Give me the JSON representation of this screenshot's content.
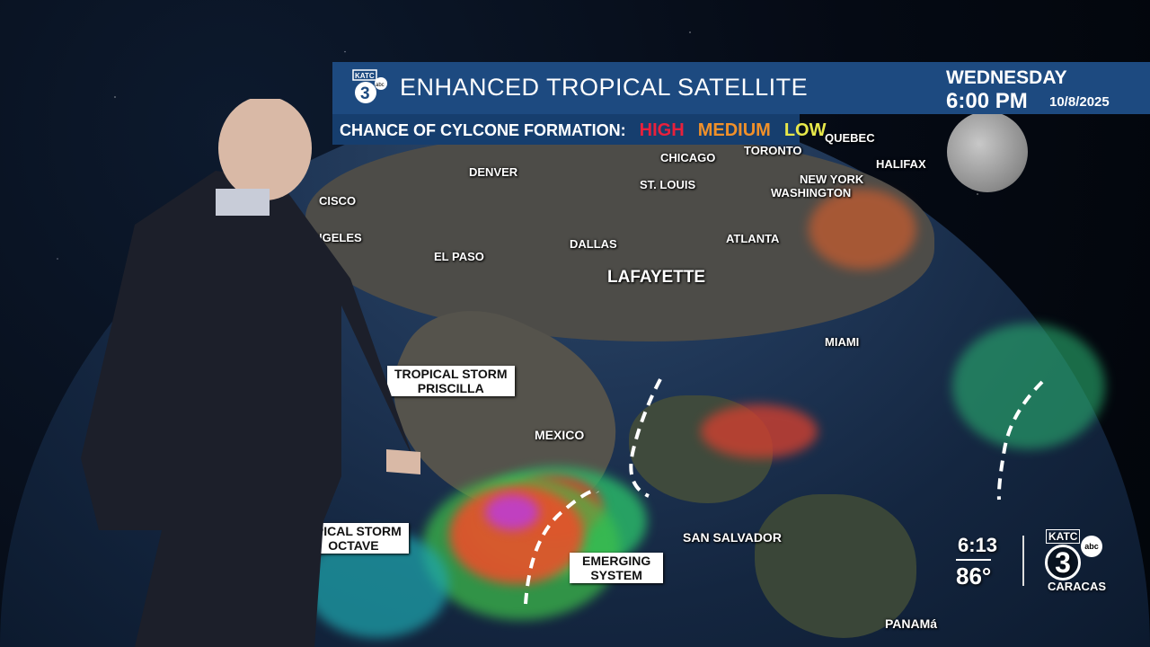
{
  "header": {
    "station_logo": "KATC 3 abc",
    "title": "ENHANCED TROPICAL SATELLITE",
    "day": "WEDNESDAY",
    "time": "6:00 PM",
    "date": "10/8/2025"
  },
  "legend": {
    "label": "CHANCE OF CYLCONE FORMATION:",
    "levels": [
      {
        "label": "HIGH",
        "color": "#e8203c"
      },
      {
        "label": "MEDIUM",
        "color": "#f0902a"
      },
      {
        "label": "LOW",
        "color": "#e8e84a"
      }
    ]
  },
  "cities": {
    "quebec": "QUEBEC",
    "halifax": "HALIFAX",
    "toronto": "TORONTO",
    "chicago": "CHICAGO",
    "new_york": "NEW YORK",
    "washington": "WASHINGTON",
    "denver": "DENVER",
    "st_louis": "ST. LOUIS",
    "dallas": "DALLAS",
    "atlanta": "ATLANTA",
    "el_paso": "EL PASO",
    "los_angeles": "LOS ANGELES",
    "san_francisco": "CISCO",
    "lafayette": "LAFAYETTE",
    "miami": "MIAMI",
    "mexico": "MEXICO",
    "san_salvador": "SAN SALVADOR",
    "panama": "PANAMá"
  },
  "storms": [
    {
      "line1": "TROPICAL STORM",
      "line2": "PRISCILLA"
    },
    {
      "line1": "OPICAL STORM",
      "line2": "OCTAVE"
    },
    {
      "line1": "EMERGING",
      "line2": "SYSTEM"
    }
  ],
  "bug": {
    "clock": "6:13",
    "temperature": "86°",
    "station": "KATC",
    "channel": "3",
    "network": "abc",
    "location": "CARACAS"
  }
}
